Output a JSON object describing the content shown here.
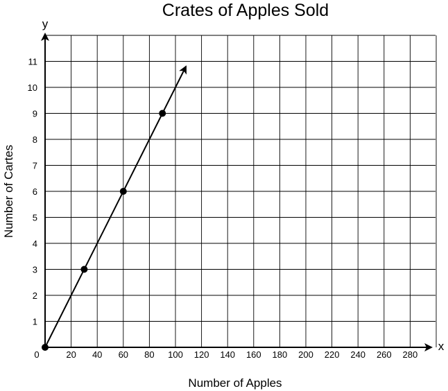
{
  "chart_data": {
    "type": "line",
    "title": "Crates of Apples Sold",
    "xlabel": "Number of Apples",
    "ylabel": "Number of Cartes",
    "x_axis_letter": "x",
    "y_axis_letter": "y",
    "origin_label": "0",
    "xlim": [
      0,
      300
    ],
    "ylim": [
      0,
      12
    ],
    "grid": true,
    "x_ticks": [
      20,
      40,
      60,
      80,
      100,
      120,
      140,
      160,
      180,
      200,
      220,
      240,
      260,
      280
    ],
    "y_ticks": [
      1,
      2,
      3,
      4,
      5,
      6,
      7,
      8,
      9,
      10,
      11
    ],
    "series": [
      {
        "points": [
          [
            0,
            0
          ],
          [
            30,
            3
          ],
          [
            60,
            6
          ],
          [
            90,
            9
          ]
        ],
        "line_end": [
          108,
          10.8
        ],
        "end_arrow": true
      }
    ]
  }
}
